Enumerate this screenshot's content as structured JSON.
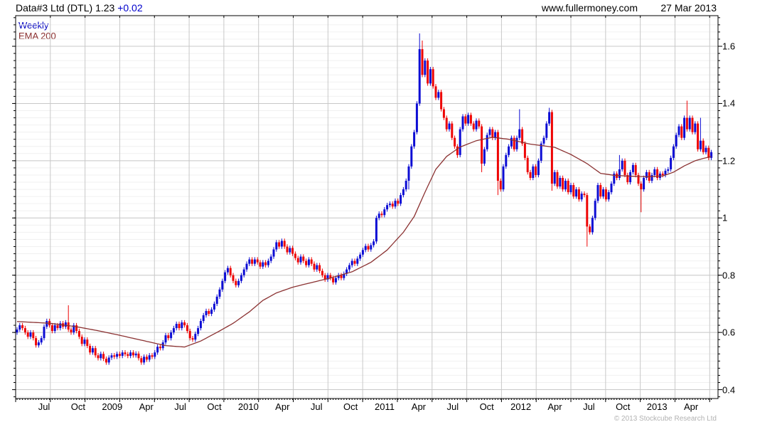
{
  "header": {
    "instrument": "Data#3 Ltd (DTL)",
    "price": "1.23",
    "change": "+0.02",
    "site": "www.fullermoney.com",
    "date": "27 Mar 2013"
  },
  "legend": {
    "timeframe": "Weekly",
    "overlay": "EMA 200"
  },
  "footer": {
    "copyright": "© 2013 Stockcube Research Ltd"
  },
  "colors": {
    "up_candle": "#0d0dd4",
    "down_candle": "#ee0404",
    "ema_line": "#8b3232",
    "grid_major": "#c8c8c8",
    "grid_minor": "#f0f0f0",
    "axis": "#000000",
    "timeframe_text": "#0000bf",
    "change_text": "#0000cc",
    "copyright_text": "#b2b2b2"
  },
  "chart_data": {
    "type": "candlestick",
    "title": "Data#3 Ltd (DTL) weekly with 200-week EMA",
    "x_labels": [
      "Jul",
      "Oct",
      "2009",
      "Apr",
      "Jul",
      "Oct",
      "2010",
      "Apr",
      "Jul",
      "Oct",
      "2011",
      "Apr",
      "Jul",
      "Oct",
      "2012",
      "Apr",
      "Jul",
      "Oct",
      "2013",
      "Apr"
    ],
    "y_ticks": [
      0.4,
      0.6,
      0.8,
      1,
      1.2,
      1.4,
      1.6
    ],
    "y_tick_labels": [
      "0.4",
      "0.6",
      "0.8",
      "1",
      "1.2",
      "1.4",
      "1.6"
    ],
    "y_minor_step": 0.025,
    "ylim": [
      0.369,
      1.707
    ],
    "grid": true,
    "legend_position": "top-left",
    "weeks": 258,
    "first_open": 0.6,
    "closes": [
      0.61,
      0.625,
      0.615,
      0.6,
      0.585,
      0.6,
      0.58,
      0.555,
      0.565,
      0.58,
      0.62,
      0.64,
      0.625,
      0.605,
      0.625,
      0.615,
      0.632,
      0.62,
      0.635,
      0.61,
      0.6,
      0.625,
      0.605,
      0.585,
      0.56,
      0.575,
      0.553,
      0.53,
      0.545,
      0.52,
      0.51,
      0.525,
      0.508,
      0.495,
      0.512,
      0.52,
      0.515,
      0.525,
      0.518,
      0.53,
      0.524,
      0.518,
      0.53,
      0.52,
      0.526,
      0.51,
      0.495,
      0.515,
      0.505,
      0.52,
      0.515,
      0.53,
      0.55,
      0.545,
      0.565,
      0.59,
      0.58,
      0.6,
      0.615,
      0.63,
      0.615,
      0.635,
      0.625,
      0.605,
      0.58,
      0.575,
      0.595,
      0.615,
      0.64,
      0.66,
      0.675,
      0.665,
      0.68,
      0.7,
      0.725,
      0.75,
      0.78,
      0.81,
      0.825,
      0.8,
      0.78,
      0.765,
      0.78,
      0.8,
      0.82,
      0.84,
      0.855,
      0.84,
      0.855,
      0.845,
      0.83,
      0.845,
      0.835,
      0.85,
      0.865,
      0.89,
      0.915,
      0.9,
      0.92,
      0.9,
      0.88,
      0.895,
      0.875,
      0.86,
      0.845,
      0.865,
      0.85,
      0.835,
      0.855,
      0.84,
      0.82,
      0.835,
      0.815,
      0.8,
      0.785,
      0.8,
      0.79,
      0.775,
      0.79,
      0.8,
      0.79,
      0.805,
      0.82,
      0.835,
      0.85,
      0.84,
      0.858,
      0.872,
      0.888,
      0.902,
      0.89,
      0.905,
      0.918,
      1.0,
      1.015,
      1.01,
      1.03,
      1.045,
      1.05,
      1.04,
      1.06,
      1.05,
      1.08,
      1.1,
      1.13,
      1.18,
      1.25,
      1.3,
      1.4,
      1.59,
      1.5,
      1.55,
      1.47,
      1.52,
      1.46,
      1.42,
      1.44,
      1.38,
      1.35,
      1.31,
      1.33,
      1.28,
      1.25,
      1.22,
      1.31,
      1.355,
      1.33,
      1.36,
      1.33,
      1.31,
      1.34,
      1.32,
      1.19,
      1.24,
      1.29,
      1.31,
      1.28,
      1.3,
      1.13,
      1.1,
      1.18,
      1.22,
      1.25,
      1.28,
      1.24,
      1.28,
      1.31,
      1.26,
      1.21,
      1.16,
      1.14,
      1.18,
      1.15,
      1.2,
      1.26,
      1.28,
      1.33,
      1.37,
      1.12,
      1.16,
      1.11,
      1.14,
      1.1,
      1.13,
      1.09,
      1.115,
      1.075,
      1.1,
      1.065,
      1.085,
      1.08,
      0.97,
      0.95,
      1.0,
      1.06,
      1.115,
      1.075,
      1.1,
      1.065,
      1.09,
      1.12,
      1.155,
      1.14,
      1.17,
      1.2,
      1.15,
      1.125,
      1.16,
      1.185,
      1.15,
      1.12,
      1.1,
      1.14,
      1.16,
      1.13,
      1.15,
      1.17,
      1.14,
      1.155,
      1.15,
      1.165,
      1.17,
      1.21,
      1.25,
      1.29,
      1.32,
      1.28,
      1.35,
      1.31,
      1.35,
      1.3,
      1.33,
      1.24,
      1.27,
      1.23,
      1.245,
      1.21,
      1.23
    ],
    "wick_overrides": {
      "19": [
        0.695,
        null
      ],
      "145": [
        null,
        1.1
      ],
      "149": [
        1.645,
        null
      ],
      "150": [
        1.62,
        null
      ],
      "163": [
        null,
        1.21
      ],
      "172": [
        null,
        1.16
      ],
      "178": [
        null,
        1.08
      ],
      "186": [
        1.38,
        null
      ],
      "197": [
        1.385,
        null
      ],
      "198": [
        null,
        1.095
      ],
      "211": [
        null,
        0.9
      ],
      "223": [
        1.22,
        null
      ],
      "231": [
        null,
        1.02
      ],
      "248": [
        1.41,
        null
      ],
      "253": [
        1.35,
        null
      ]
    },
    "ema_anchors": [
      [
        0,
        0.638
      ],
      [
        12,
        0.632
      ],
      [
        22,
        0.62
      ],
      [
        30,
        0.606
      ],
      [
        38,
        0.59
      ],
      [
        46,
        0.573
      ],
      [
        55,
        0.554
      ],
      [
        62,
        0.549
      ],
      [
        68,
        0.57
      ],
      [
        74,
        0.6
      ],
      [
        80,
        0.632
      ],
      [
        86,
        0.672
      ],
      [
        91,
        0.712
      ],
      [
        96,
        0.738
      ],
      [
        102,
        0.758
      ],
      [
        108,
        0.772
      ],
      [
        116,
        0.79
      ],
      [
        124,
        0.812
      ],
      [
        131,
        0.845
      ],
      [
        137,
        0.888
      ],
      [
        143,
        0.95
      ],
      [
        147,
        1.005
      ],
      [
        151,
        1.09
      ],
      [
        155,
        1.17
      ],
      [
        159,
        1.215
      ],
      [
        164,
        1.248
      ],
      [
        170,
        1.27
      ],
      [
        176,
        1.282
      ],
      [
        182,
        1.275
      ],
      [
        190,
        1.258
      ],
      [
        199,
        1.247
      ],
      [
        205,
        1.222
      ],
      [
        211,
        1.19
      ],
      [
        216,
        1.156
      ],
      [
        221,
        1.149
      ],
      [
        227,
        1.146
      ],
      [
        233,
        1.144
      ],
      [
        239,
        1.147
      ],
      [
        243,
        1.16
      ],
      [
        247,
        1.182
      ],
      [
        251,
        1.2
      ],
      [
        254,
        1.208
      ],
      [
        257,
        1.215
      ]
    ],
    "series": [
      {
        "name": "Weekly",
        "type": "ohlc-candles"
      },
      {
        "name": "EMA 200",
        "type": "line"
      }
    ]
  }
}
